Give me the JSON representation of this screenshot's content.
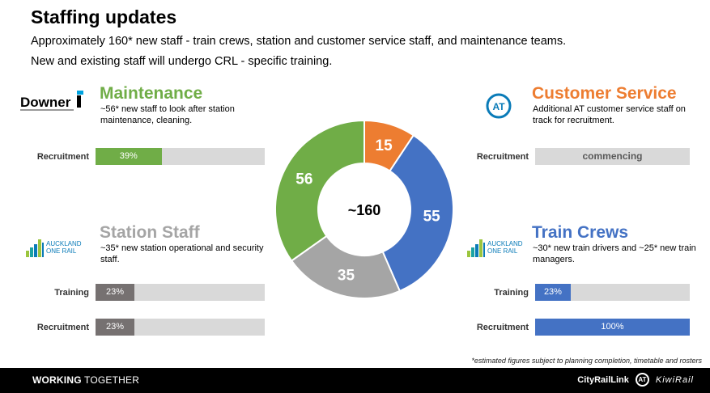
{
  "title": "Staffing updates",
  "subtitle_1": "Approximately 160* new staff - train crews, station and customer service staff, and maintenance teams.",
  "subtitle_2": "New and existing staff will undergo CRL - specific training.",
  "colors": {
    "maintenance": "#70ad47",
    "customer_service": "#ed7d31",
    "station_staff": "#a5a5a5",
    "train_crews": "#4472c4",
    "bar_track": "#d9d9d9"
  },
  "maintenance": {
    "title": "Maintenance",
    "desc": "~56* new staff to look after station maintenance, cleaning.",
    "logo_text": "Downer",
    "logo_icon": "downer-logo",
    "bars": [
      {
        "label": "Recruitment",
        "percent": 39,
        "text": "39%"
      }
    ]
  },
  "customer_service": {
    "title": "Customer Service",
    "desc": "Additional AT customer service staff on track for recruitment.",
    "logo_icon": "at-logo",
    "logo_text": "AT",
    "bars": [
      {
        "label": "Recruitment",
        "percent": 0,
        "text": "commencing"
      }
    ]
  },
  "station_staff": {
    "title": "Station Staff",
    "desc": "~35* new station operational and security staff.",
    "logo_icon": "auckland-one-rail-logo",
    "logo_text_1": "AUCKLAND",
    "logo_text_2": "ONE RAIL",
    "bars": [
      {
        "label": "Training",
        "percent": 23,
        "text": "23%"
      },
      {
        "label": "Recruitment",
        "percent": 23,
        "text": "23%"
      }
    ]
  },
  "train_crews": {
    "title": "Train Crews",
    "desc": "~30* new train drivers and ~25* new train managers.",
    "logo_icon": "auckland-one-rail-logo",
    "logo_text_1": "AUCKLAND",
    "logo_text_2": "ONE RAIL",
    "bars": [
      {
        "label": "Training",
        "percent": 23,
        "text": "23%"
      },
      {
        "label": "Recruitment",
        "percent": 100,
        "text": "100%"
      }
    ]
  },
  "chart_data": {
    "type": "pie",
    "center_label": "~160",
    "slices": [
      {
        "label": "15",
        "value": 15,
        "color": "#ed7d31"
      },
      {
        "label": "55",
        "value": 55,
        "color": "#4472c4"
      },
      {
        "label": "35",
        "value": 35,
        "color": "#a5a5a5"
      },
      {
        "label": "56",
        "value": 56,
        "color": "#70ad47"
      }
    ]
  },
  "footnote": "*estimated figures subject to planning completion, timetable and rosters",
  "footer": {
    "left_bold": "WORKING",
    "left_rest": " TOGETHER",
    "right_1": "CityRailLink",
    "right_at": "AT",
    "right_2": "KiwiRail"
  }
}
